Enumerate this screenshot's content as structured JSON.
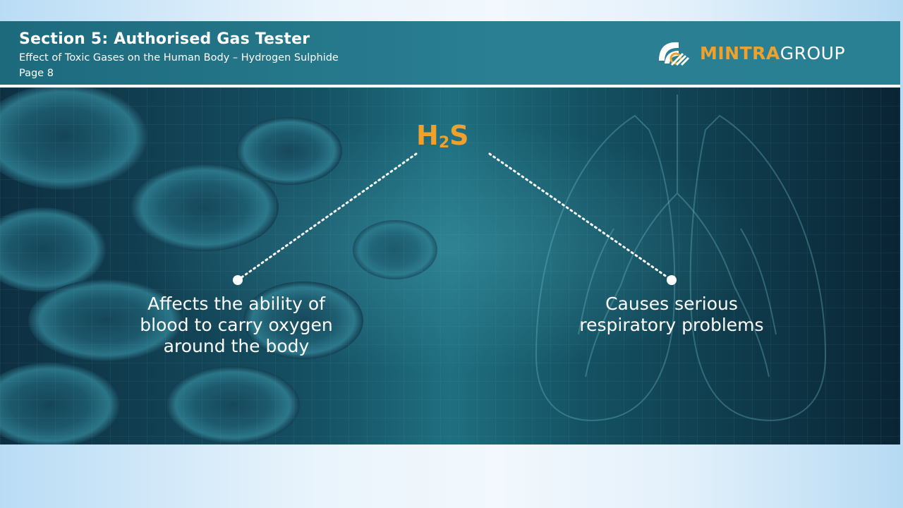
{
  "header": {
    "title": "Section 5: Authorised Gas Tester",
    "subtitle": "Effect of Toxic Gases on the Human Body – Hydrogen Sulphide",
    "page": "Page 8"
  },
  "logo": {
    "brand_primary": "MINTRA",
    "brand_secondary": "GROUP",
    "icon": "mintra-logo-icon"
  },
  "diagram": {
    "center": {
      "symbol_main": "H",
      "symbol_sub": "2",
      "symbol_end": "S"
    },
    "left_effect": {
      "lines": [
        "Affects the ability of",
        "blood to carry oxygen",
        "around the body"
      ]
    },
    "right_effect": {
      "lines": [
        "Causes serious",
        "respiratory problems"
      ]
    }
  },
  "colors": {
    "accent": "#f0a12c",
    "header_bg": "#2a7f92",
    "text": "#ffffff"
  }
}
